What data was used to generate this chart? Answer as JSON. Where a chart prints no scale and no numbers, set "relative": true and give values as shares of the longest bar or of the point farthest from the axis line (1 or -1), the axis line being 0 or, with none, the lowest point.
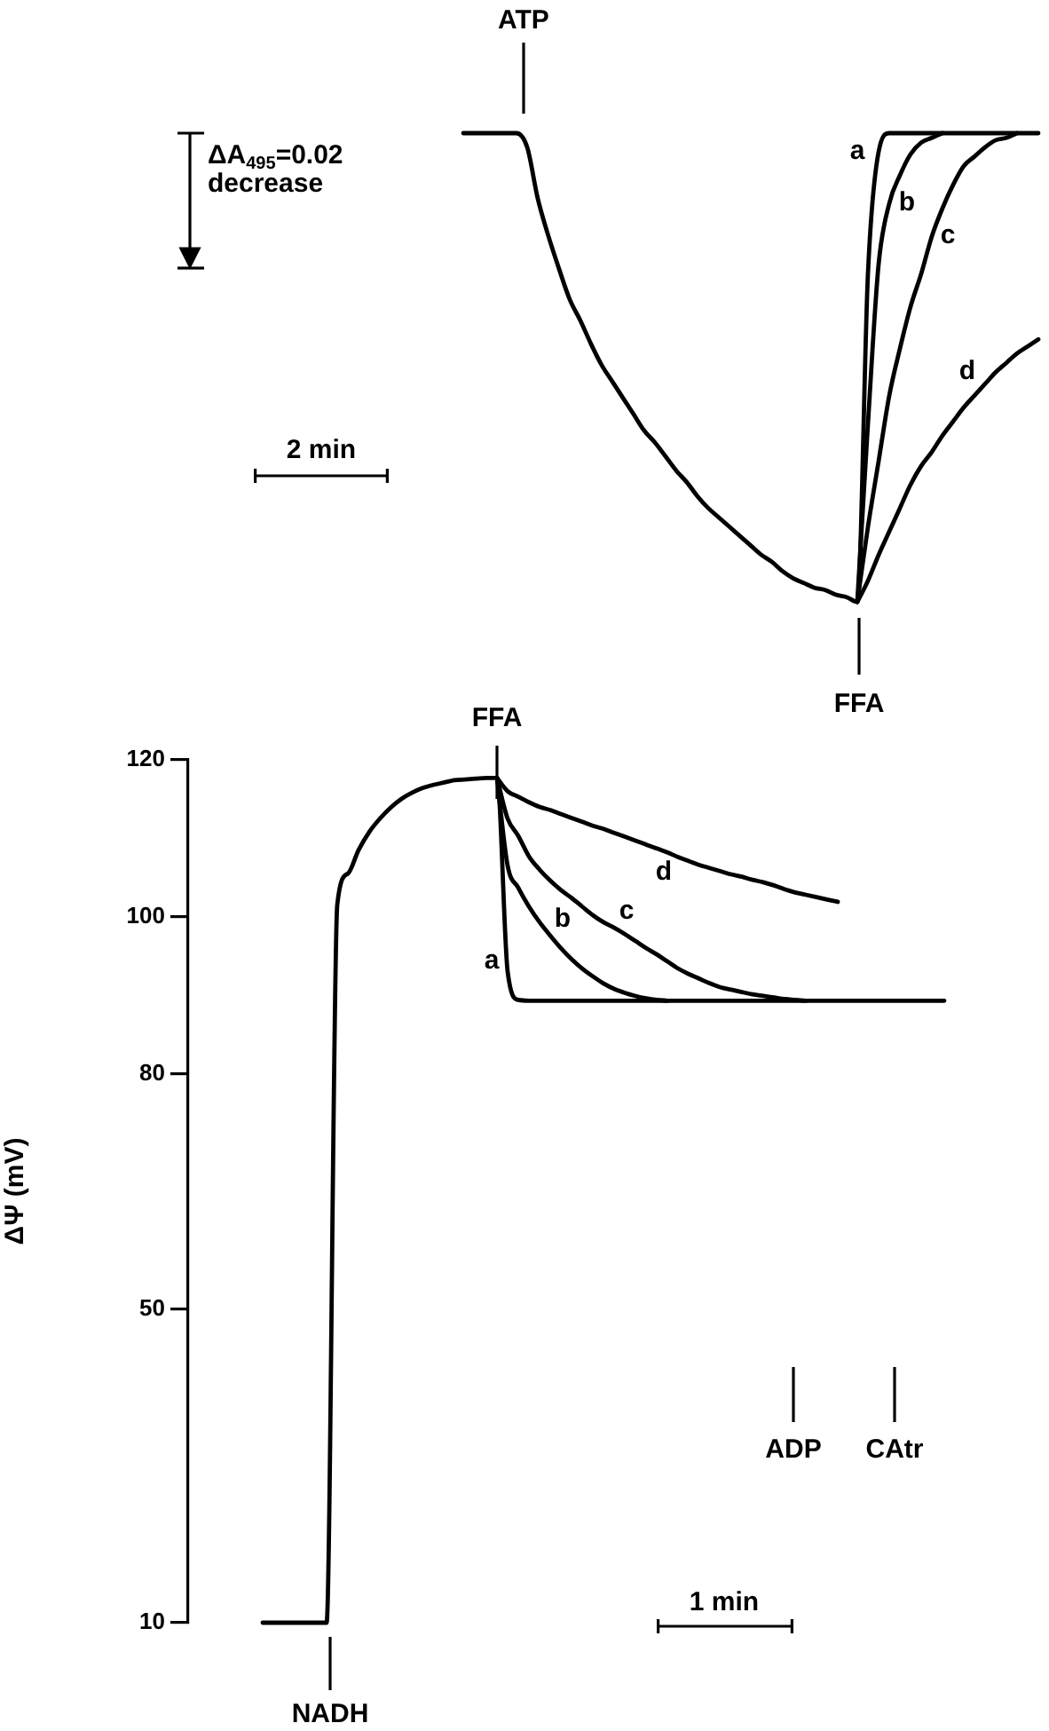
{
  "chart_data": [
    {
      "type": "line",
      "relative": true,
      "categories": [
        null,
        null,
        null,
        null,
        null,
        null,
        null,
        null,
        null,
        null,
        null,
        null,
        null,
        null,
        null,
        null,
        null,
        null,
        null,
        null,
        null,
        null,
        null,
        null,
        null,
        null,
        null,
        null,
        null,
        null,
        null,
        null,
        null,
        null,
        null,
        null,
        null,
        null,
        null,
        null,
        null,
        null,
        null,
        null,
        null,
        null,
        null,
        null,
        null,
        null,
        null,
        null,
        null,
        null,
        null
      ],
      "series": [
        {
          "name": "a",
          "color": "#000000",
          "values": [
            1,
            1,
            1,
            1,
            1,
            1,
            0.97,
            0.86,
            0.78,
            0.71,
            0.645,
            0.6,
            0.55,
            0.505,
            0.47,
            0.435,
            0.4,
            0.365,
            0.34,
            0.31,
            0.28,
            0.255,
            0.225,
            0.2,
            0.18,
            0.16,
            0.14,
            0.12,
            0.1,
            0.085,
            0.065,
            0.05,
            0.04,
            0.03,
            0.025,
            0.015,
            0.01,
            0,
            0.7,
            0.96,
            1,
            1,
            1,
            1,
            1,
            1,
            1,
            1,
            1,
            1,
            1,
            1,
            1,
            1,
            1
          ]
        },
        {
          "name": "b",
          "color": "#000000",
          "values": [
            null,
            null,
            null,
            null,
            null,
            null,
            null,
            null,
            null,
            null,
            null,
            null,
            null,
            null,
            null,
            null,
            null,
            null,
            null,
            null,
            null,
            null,
            null,
            null,
            null,
            null,
            null,
            null,
            null,
            null,
            null,
            null,
            null,
            null,
            null,
            null,
            null,
            0,
            0.38,
            0.72,
            0.85,
            0.91,
            0.955,
            0.98,
            0.99,
            1,
            null,
            null,
            null,
            null,
            null,
            null,
            null,
            null,
            null
          ]
        },
        {
          "name": "c",
          "color": "#000000",
          "values": [
            null,
            null,
            null,
            null,
            null,
            null,
            null,
            null,
            null,
            null,
            null,
            null,
            null,
            null,
            null,
            null,
            null,
            null,
            null,
            null,
            null,
            null,
            null,
            null,
            null,
            null,
            null,
            null,
            null,
            null,
            null,
            null,
            null,
            null,
            null,
            null,
            null,
            0,
            0.16,
            0.3,
            0.44,
            0.54,
            0.63,
            0.7,
            0.78,
            0.84,
            0.89,
            0.93,
            0.95,
            0.97,
            0.985,
            0.99,
            1,
            null,
            null
          ]
        },
        {
          "name": "d",
          "color": "#000000",
          "values": [
            null,
            null,
            null,
            null,
            null,
            null,
            null,
            null,
            null,
            null,
            null,
            null,
            null,
            null,
            null,
            null,
            null,
            null,
            null,
            null,
            null,
            null,
            null,
            null,
            null,
            null,
            null,
            null,
            null,
            null,
            null,
            null,
            null,
            null,
            null,
            null,
            null,
            0,
            0.045,
            0.1,
            0.15,
            0.2,
            0.25,
            0.29,
            0.32,
            0.355,
            0.385,
            0.415,
            0.44,
            0.465,
            0.49,
            0.51,
            0.53,
            0.545,
            0.56
          ]
        }
      ],
      "annotations": [
        "ATP",
        "FFA",
        "ΔA$_{495}$=0.02 decrease",
        "2 min"
      ]
    },
    {
      "type": "line",
      "ylabel": "ΔΨ (mV)",
      "ylim": [
        10,
        120
      ],
      "yticks": [
        10,
        50,
        80,
        100,
        120
      ],
      "categories": [
        null,
        null,
        null,
        null,
        null,
        null,
        null,
        null,
        null,
        null,
        null,
        null,
        null,
        null,
        null,
        null,
        null,
        null,
        null,
        null,
        null,
        null,
        null,
        null,
        null,
        null,
        null,
        null,
        null,
        null,
        null,
        null,
        null,
        null,
        null,
        null,
        null,
        null,
        null,
        null,
        null,
        null,
        null,
        null,
        null,
        null,
        null,
        null,
        null,
        null,
        null,
        null,
        null,
        null,
        null,
        null,
        null,
        null,
        null,
        null,
        null,
        null,
        null,
        null,
        null
      ],
      "series": [
        {
          "name": "a",
          "color": "#000000",
          "values": [
            10,
            10,
            10,
            10,
            10,
            10,
            10,
            101.5,
            105.5,
            108.5,
            110.8,
            112.5,
            113.9,
            115.0,
            115.8,
            116.4,
            116.8,
            117.1,
            117.4,
            117.5,
            117.6,
            117.7,
            117.7,
            93,
            89.4,
            89.3,
            89.3,
            89.3,
            89.3,
            89.3,
            89.3,
            89.3,
            89.3,
            89.3,
            89.3,
            89.3,
            89.3,
            89.3,
            89.3,
            89.3,
            89.3,
            89.3,
            89.3,
            89.3,
            89.3,
            89.3,
            89.3,
            89.3,
            89.3,
            89.3,
            89.3,
            89.3,
            89.3,
            89.3,
            89.3,
            89.3,
            89.3,
            89.3,
            89.3,
            89.3,
            89.3,
            89.3,
            89.3,
            89.3,
            89.3
          ]
        },
        {
          "name": "b",
          "color": "#000000",
          "values": [
            null,
            null,
            null,
            null,
            null,
            null,
            null,
            null,
            null,
            null,
            null,
            null,
            null,
            null,
            null,
            null,
            null,
            null,
            null,
            null,
            null,
            null,
            117.7,
            106.5,
            103.7,
            101.3,
            99.3,
            97.6,
            96.0,
            94.6,
            93.4,
            92.4,
            91.5,
            90.8,
            90.3,
            89.9,
            89.6,
            89.4,
            89.3,
            null,
            null,
            null,
            null,
            null,
            null,
            null,
            null,
            null,
            null,
            null,
            null,
            null,
            null,
            null,
            null,
            null,
            null,
            null,
            null,
            null,
            null,
            null,
            null,
            null,
            null
          ]
        },
        {
          "name": "c",
          "color": "#000000",
          "values": [
            null,
            null,
            null,
            null,
            null,
            null,
            null,
            null,
            null,
            null,
            null,
            null,
            null,
            null,
            null,
            null,
            null,
            null,
            null,
            null,
            null,
            null,
            117.7,
            112.5,
            110.3,
            107.7,
            106.0,
            104.6,
            103.4,
            102.4,
            101.3,
            100.2,
            99.3,
            98.6,
            97.8,
            96.9,
            96.0,
            95.2,
            94.3,
            93.4,
            92.7,
            92.1,
            91.5,
            91.0,
            90.7,
            90.4,
            90.1,
            89.9,
            89.7,
            89.5,
            89.4,
            89.3,
            null,
            null,
            null,
            null,
            null,
            null,
            null,
            null,
            null,
            null,
            null,
            null,
            null
          ]
        },
        {
          "name": "d",
          "color": "#000000",
          "values": [
            null,
            null,
            null,
            null,
            null,
            null,
            null,
            null,
            null,
            null,
            null,
            null,
            null,
            null,
            null,
            null,
            null,
            null,
            null,
            null,
            null,
            null,
            117.7,
            116.0,
            115.3,
            114.6,
            114.0,
            113.6,
            113.1,
            112.6,
            112.1,
            111.6,
            111.2,
            110.7,
            110.2,
            109.7,
            109.2,
            108.7,
            108.2,
            107.6,
            107.1,
            106.6,
            106.2,
            105.8,
            105.4,
            105.1,
            104.7,
            104.4,
            104.0,
            103.5,
            103.1,
            102.8,
            102.5,
            102.2,
            101.9,
            null,
            null,
            null,
            null,
            null,
            null,
            null,
            null,
            null,
            null
          ]
        }
      ],
      "annotations": [
        "FFA",
        "NADH",
        "ADP",
        "CAtr",
        "1 min"
      ]
    }
  ]
}
